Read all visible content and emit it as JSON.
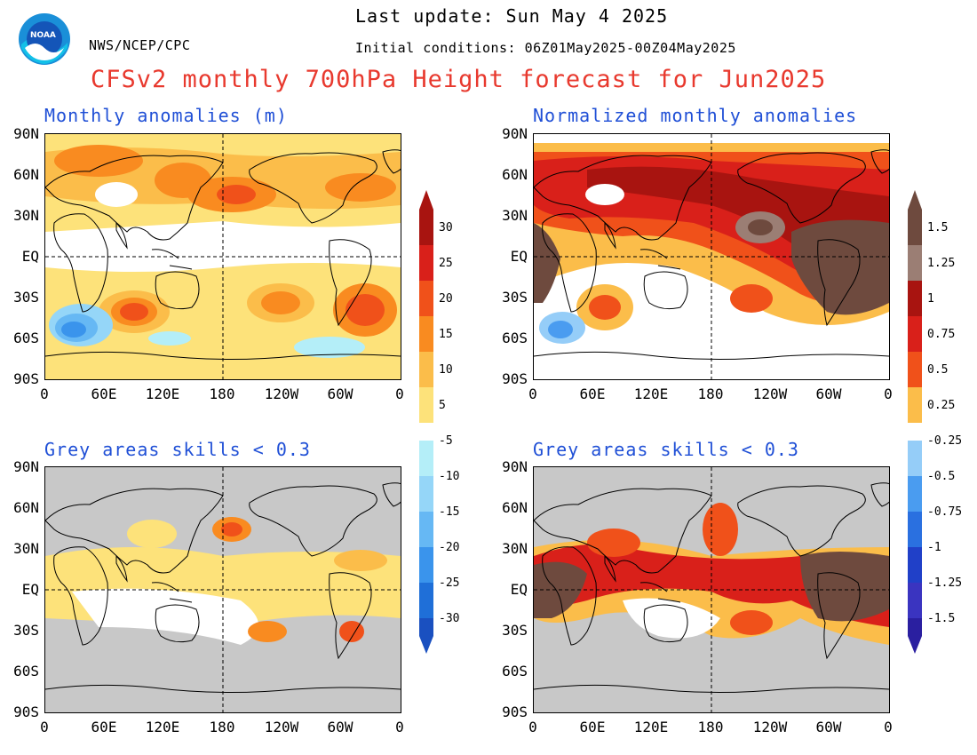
{
  "header": {
    "agency": "NWS/NCEP/CPC",
    "last_update": "Last update: Sun May 4 2025",
    "initial_conditions": "Initial conditions: 06Z01May2025-00Z04May2025",
    "title": "CFSv2 monthly 700hPa Height forecast for Jun2025",
    "logo_text": "NOAA"
  },
  "panels": {
    "top_left_title": "Monthly anomalies (m)",
    "top_right_title": "Normalized monthly anomalies",
    "bottom_left_title": "Grey areas skills < 0.3",
    "bottom_right_title": "Grey areas skills < 0.3"
  },
  "axes": {
    "lat_labels": [
      "90N",
      "60N",
      "30N",
      "EQ",
      "30S",
      "60S",
      "90S"
    ],
    "lon_labels": [
      "0",
      "60E",
      "120E",
      "180",
      "120W",
      "60W",
      "0"
    ]
  },
  "colorbar_left": {
    "labels": [
      "30",
      "25",
      "20",
      "15",
      "10",
      "5",
      "-5",
      "-10",
      "-15",
      "-20",
      "-25",
      "-30"
    ]
  },
  "colorbar_right": {
    "labels": [
      "1.5",
      "1.25",
      "1",
      "0.75",
      "0.5",
      "0.25",
      "-0.25",
      "-0.5",
      "-0.75",
      "-1",
      "-1.25",
      "-1.5"
    ]
  },
  "colors": {
    "title": "#e8392e",
    "panel_title": "#1f4fd6",
    "skill_mask": "#c8c8c8",
    "pos_levels": [
      "#fde27a",
      "#fbbd4a",
      "#f98b20",
      "#f0511a",
      "#d9201a",
      "#a81410"
    ],
    "neg_levels": [
      "#b4eef8",
      "#95d6f8",
      "#66b8f4",
      "#3a94ec",
      "#1f6fd8",
      "#1a50c0"
    ],
    "norm_pos_levels": [
      "#fbbd4a",
      "#f0511a",
      "#d9201a",
      "#a81410",
      "#9b7e74",
      "#6e4a3e"
    ],
    "norm_neg_levels": [
      "#95cdf8",
      "#4a9cf0",
      "#2a70e0",
      "#2040c8",
      "#3a34c0",
      "#2a1fa0"
    ]
  }
}
